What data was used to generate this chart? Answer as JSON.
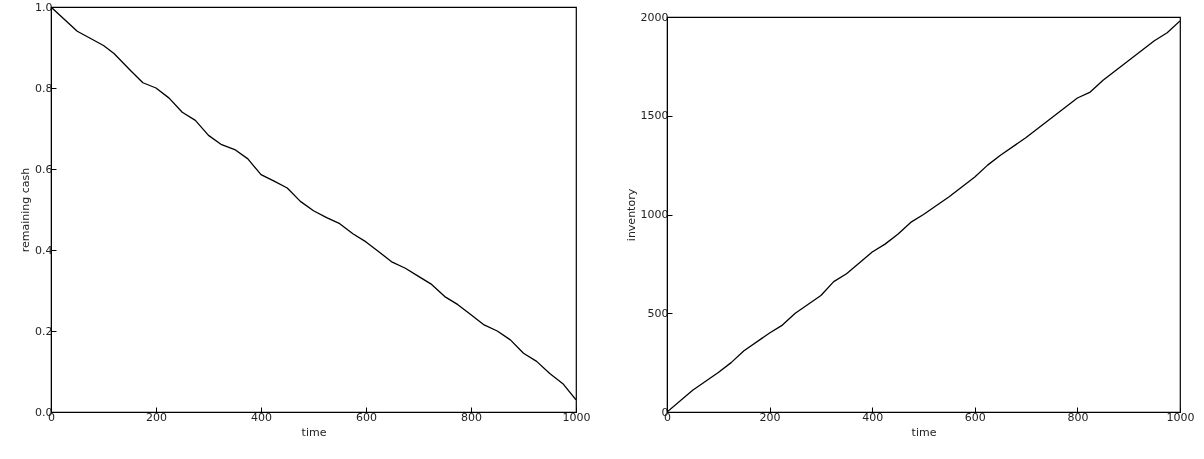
{
  "chart_data": [
    {
      "type": "line",
      "xlabel": "time",
      "ylabel": "remaining cash",
      "x": [
        0,
        50,
        100,
        120,
        150,
        175,
        200,
        225,
        250,
        275,
        300,
        325,
        350,
        375,
        400,
        425,
        450,
        475,
        500,
        525,
        550,
        575,
        600,
        625,
        650,
        675,
        700,
        725,
        750,
        775,
        800,
        825,
        850,
        875,
        900,
        925,
        950,
        975,
        1000
      ],
      "series": [
        {
          "color": "#000000",
          "values": [
            1.0,
            0.94,
            0.905,
            0.885,
            0.845,
            0.813,
            0.8,
            0.775,
            0.74,
            0.72,
            0.683,
            0.66,
            0.648,
            0.625,
            0.586,
            0.57,
            0.553,
            0.52,
            0.497,
            0.48,
            0.465,
            0.44,
            0.42,
            0.395,
            0.37,
            0.355,
            0.335,
            0.315,
            0.285,
            0.265,
            0.24,
            0.215,
            0.2,
            0.178,
            0.145,
            0.125,
            0.095,
            0.07,
            0.03
          ]
        }
      ],
      "xlim": [
        0,
        1000
      ],
      "xticks": [
        0,
        200,
        400,
        600,
        800,
        1000
      ],
      "ylim": [
        0,
        1
      ],
      "yticks": [
        {
          "value": 0,
          "label": "0.0"
        },
        0.2,
        0.4,
        0.6,
        0.8,
        {
          "value": 1,
          "label": "1.0"
        }
      ]
    },
    {
      "type": "line",
      "xlabel": "time",
      "ylabel": "inventory",
      "x": [
        0,
        50,
        100,
        125,
        150,
        200,
        225,
        250,
        300,
        325,
        350,
        400,
        425,
        450,
        475,
        500,
        550,
        600,
        625,
        650,
        700,
        750,
        800,
        825,
        850,
        900,
        950,
        975,
        1000
      ],
      "series": [
        {
          "color": "#000000",
          "values": [
            0,
            110,
            200,
            250,
            310,
            400,
            440,
            500,
            590,
            660,
            700,
            810,
            850,
            900,
            960,
            1000,
            1090,
            1190,
            1250,
            1300,
            1390,
            1490,
            1590,
            1620,
            1680,
            1780,
            1880,
            1920,
            1980
          ]
        }
      ],
      "xlim": [
        0,
        1000
      ],
      "xticks": [
        0,
        200,
        400,
        600,
        800,
        1000
      ],
      "ylim": [
        0,
        2000
      ],
      "yticks": [
        0,
        500,
        1000,
        1500,
        2000
      ]
    }
  ]
}
